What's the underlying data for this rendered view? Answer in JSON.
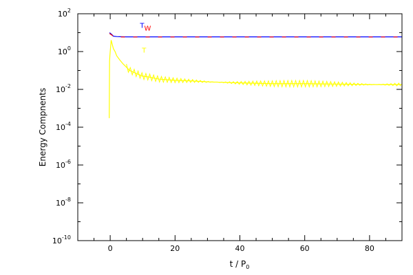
{
  "chart_data": {
    "type": "line",
    "xlabel": "t / P",
    "xlabel_sub": "0",
    "ylabel": "Energy Compnents",
    "xlim": [
      -10,
      90
    ],
    "ylim": [
      1e-10,
      100
    ],
    "yscale": "log",
    "x_ticks": [
      0,
      20,
      40,
      60,
      80
    ],
    "y_ticks": [
      {
        "value": 1e-10,
        "base": "10",
        "exp": "-10"
      },
      {
        "value": 1e-08,
        "base": "10",
        "exp": "-8"
      },
      {
        "value": 1e-06,
        "base": "10",
        "exp": "-6"
      },
      {
        "value": 0.0001,
        "base": "10",
        "exp": "-4"
      },
      {
        "value": 0.01,
        "base": "10",
        "exp": "-2"
      },
      {
        "value": 1,
        "base": "10",
        "exp": "0"
      },
      {
        "value": 100,
        "base": "10",
        "exp": "2"
      }
    ],
    "series": [
      {
        "color": "#0000ff",
        "style": "solid",
        "x": [
          -0.2,
          0.5,
          1,
          2,
          3,
          5,
          10,
          20,
          40,
          60,
          80,
          90
        ],
        "y": [
          10,
          8,
          6.5,
          6.2,
          6.1,
          6.0,
          6.0,
          6.0,
          6.0,
          6.0,
          6.0,
          6.0
        ]
      },
      {
        "color": "#ff0000",
        "style": "dashed",
        "x": [
          -0.2,
          0.5,
          1,
          2,
          3,
          5,
          10,
          20,
          40,
          60,
          80,
          90
        ],
        "y": [
          9,
          7.5,
          6.2,
          6.0,
          5.9,
          5.9,
          5.9,
          5.9,
          5.9,
          5.9,
          5.9,
          5.9
        ]
      },
      {
        "color": "#ffff00",
        "style": "solid",
        "x": [
          -0.3,
          -0.25,
          -0.2,
          -0.1,
          0,
          0.3,
          0.6,
          1,
          1.5,
          2,
          3,
          4,
          5,
          6,
          8,
          10,
          12,
          15,
          20,
          25,
          30,
          40,
          50,
          60,
          70,
          80,
          90
        ],
        "y": [
          0.0003,
          0.01,
          0.3,
          0.6,
          1.0,
          4.0,
          2.5,
          1.4,
          1.0,
          0.6,
          0.35,
          0.22,
          0.15,
          0.1,
          0.07,
          0.05,
          0.045,
          0.035,
          0.03,
          0.028,
          0.025,
          0.022,
          0.02,
          0.02,
          0.019,
          0.018,
          0.018
        ]
      }
    ],
    "legend": [
      {
        "label": "T",
        "color": "#0000ff"
      },
      {
        "label": "W",
        "color": "#ff0000"
      },
      {
        "label": "T",
        "color": "#ffff00"
      }
    ]
  }
}
